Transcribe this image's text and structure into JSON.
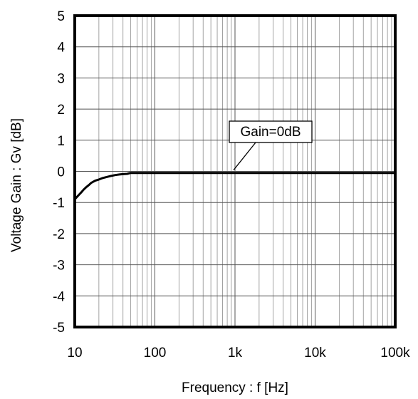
{
  "chart_data": {
    "type": "line",
    "xscale": "log",
    "xlim": [
      10,
      100000
    ],
    "ylim": [
      -5,
      5
    ],
    "xticks": [
      10,
      100,
      1000,
      10000,
      100000
    ],
    "xtick_labels": [
      "10",
      "100",
      "1k",
      "10k",
      "100k"
    ],
    "yticks": [
      5,
      4,
      3,
      2,
      1,
      0,
      -1,
      -2,
      -3,
      -4,
      -5
    ],
    "ytick_labels": [
      "5",
      "4",
      "3",
      "2",
      "1",
      "0",
      "-1",
      "-2",
      "-3",
      "-4",
      "-5"
    ],
    "xlabel": "Frequency : f [Hz]",
    "ylabel": "Voltage Gain : Gv [dB]",
    "grid": true,
    "series": [
      {
        "x": [
          10,
          11,
          12,
          13,
          14,
          15,
          16,
          18,
          20,
          22,
          25,
          28,
          32,
          36,
          40,
          45,
          50,
          100,
          1000,
          10000,
          100000
        ],
        "y": [
          -0.9,
          -0.78,
          -0.68,
          -0.58,
          -0.5,
          -0.44,
          -0.37,
          -0.3,
          -0.26,
          -0.22,
          -0.18,
          -0.15,
          -0.12,
          -0.1,
          -0.09,
          -0.08,
          -0.05,
          -0.05,
          -0.05,
          -0.05,
          -0.05
        ]
      }
    ],
    "annotations": [
      {
        "text": "Gain=0dB",
        "x": 1000,
        "y": -0.05
      }
    ]
  }
}
